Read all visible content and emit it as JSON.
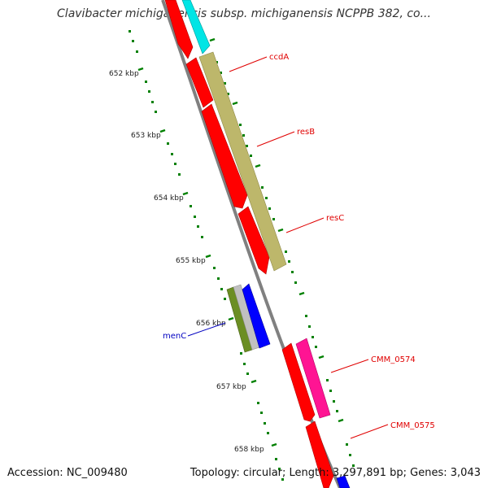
{
  "title": "Clavibacter michiganensis subsp. michiganensis NCPPB 382, co...",
  "footer": {
    "accession": "Accession: NC_009480",
    "summary": "Topology: circular; Length: 3,297,891 bp; Genes: 3,043"
  },
  "scale_labels": [
    "652 kbp",
    "653 kbp",
    "654 kbp",
    "655 kbp",
    "656 kbp",
    "657 kbp",
    "658 kbp"
  ],
  "gene_labels": [
    {
      "name": "ccdA",
      "color": "#e00000"
    },
    {
      "name": "resB",
      "color": "#e00000"
    },
    {
      "name": "resC",
      "color": "#e00000"
    },
    {
      "name": "menC",
      "color": "#0000c0"
    },
    {
      "name": "CMM_0574",
      "color": "#e00000"
    },
    {
      "name": "CMM_0575",
      "color": "#e00000"
    }
  ],
  "colors": {
    "cds_forward": "#ff0000",
    "cds_reverse": "#ff0000",
    "cyan_feature": "#00e5e5",
    "khaki_feature": "#bdb76b",
    "olive_feature": "#6b8e23",
    "gray_feature": "#c0c0c0",
    "blue_feature": "#0000ff",
    "pink_feature": "#ff1493",
    "backbone": "#808080",
    "ticks": "#008000"
  }
}
